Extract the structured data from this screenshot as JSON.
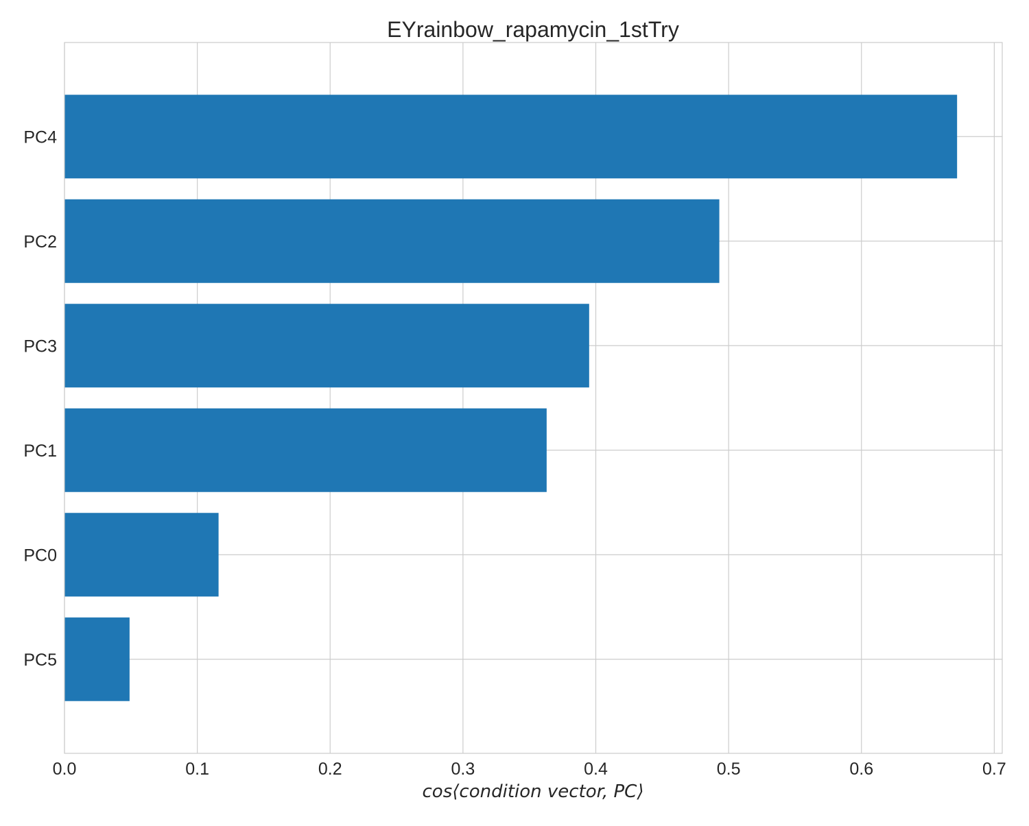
{
  "chart_data": {
    "type": "bar",
    "orientation": "horizontal",
    "title": "EYrainbow_rapamycin_1stTry",
    "xlabel": "cos⟨condition vector, PC⟩",
    "ylabel": "",
    "categories": [
      "PC4",
      "PC2",
      "PC3",
      "PC1",
      "PC0",
      "PC5"
    ],
    "values": [
      0.672,
      0.493,
      0.395,
      0.363,
      0.116,
      0.049
    ],
    "xlim": [
      0.0,
      0.706
    ],
    "xticks": [
      0.0,
      0.1,
      0.2,
      0.3,
      0.4,
      0.5,
      0.6,
      0.7
    ],
    "xtick_labels": [
      "0.0",
      "0.1",
      "0.2",
      "0.3",
      "0.4",
      "0.5",
      "0.6",
      "0.7"
    ],
    "grid": true,
    "bar_color": "#1f77b4",
    "grid_color": "#cccccc"
  }
}
